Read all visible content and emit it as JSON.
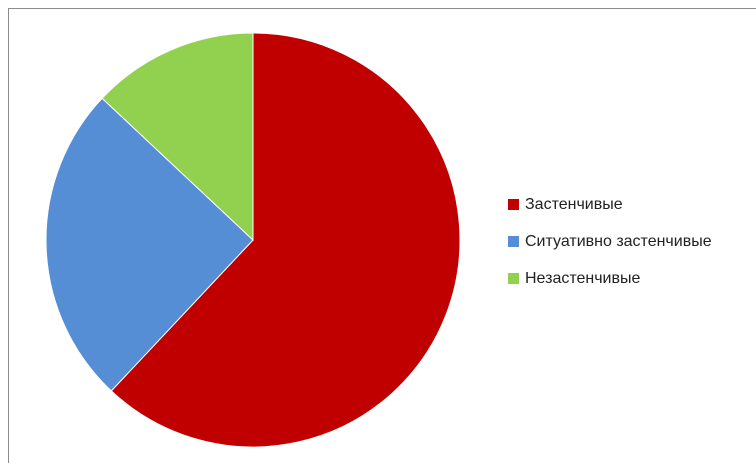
{
  "chart_data": {
    "type": "pie",
    "title": "",
    "categories": [
      "Застенчивые",
      "Ситуативно застенчивые",
      "Незастенчивые"
    ],
    "values": [
      62,
      25,
      13
    ],
    "colors": [
      "#C00000",
      "#558ED5",
      "#92D050"
    ],
    "start_angle": "12 o'clock",
    "direction": "clockwise",
    "legend_position": "right"
  }
}
